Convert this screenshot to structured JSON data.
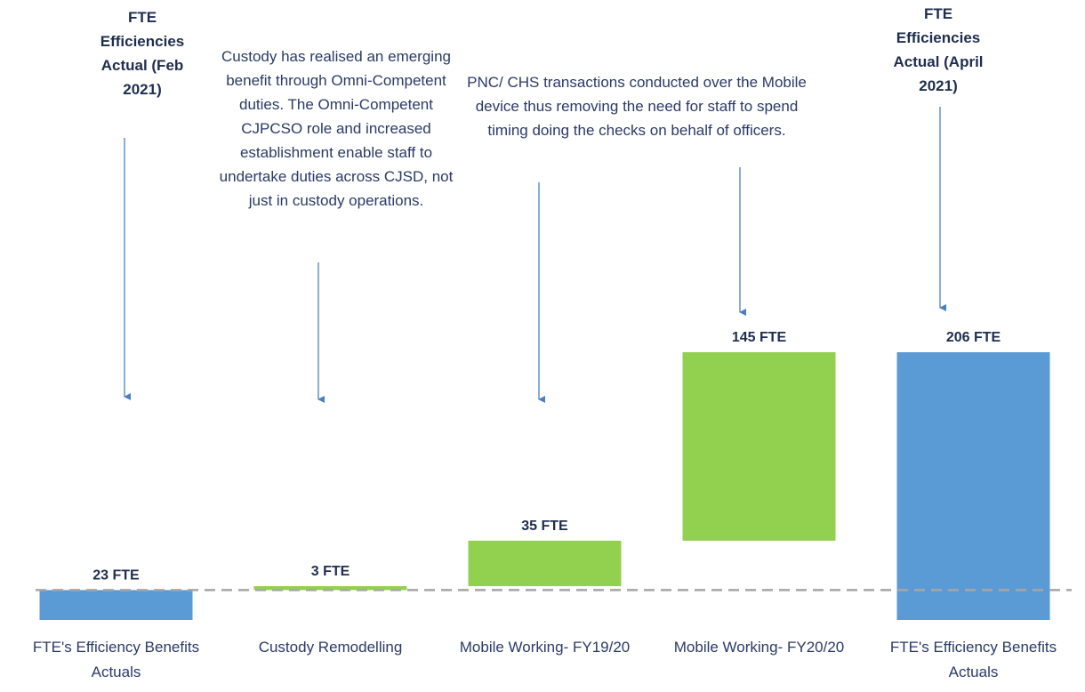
{
  "chart_data": {
    "type": "waterfall",
    "categories": [
      "FTE's Efficiency Benefits Actuals",
      "Custody Remodelling",
      "Mobile Working- FY19/20",
      "Mobile Working- FY20/20",
      "FTE's Efficiency Benefits Actuals"
    ],
    "values": [
      23,
      3,
      35,
      145,
      206
    ],
    "value_labels": [
      "23 FTE",
      "3 FTE",
      "35 FTE",
      "145 FTE",
      "206 FTE"
    ],
    "measure": [
      "total",
      "relative",
      "relative",
      "relative",
      "total"
    ],
    "colors": {
      "total": "#5b9bd5",
      "relative": "#92d050"
    },
    "annotations": [
      "FTE Efficiencies Actual (Feb 2021)",
      "Custody has realised an emerging benefit through Omni-Competent duties. The Omni-Competent CJPCSO role and increased establishment enable staff to undertake duties across CJSD, not just in custody operations.",
      "PNC/ CHS transactions conducted over the Mobile device thus removing the need for staff to spend timing doing the checks on behalf of officers.",
      "FTE Efficiencies Actual (April 2021)"
    ]
  }
}
